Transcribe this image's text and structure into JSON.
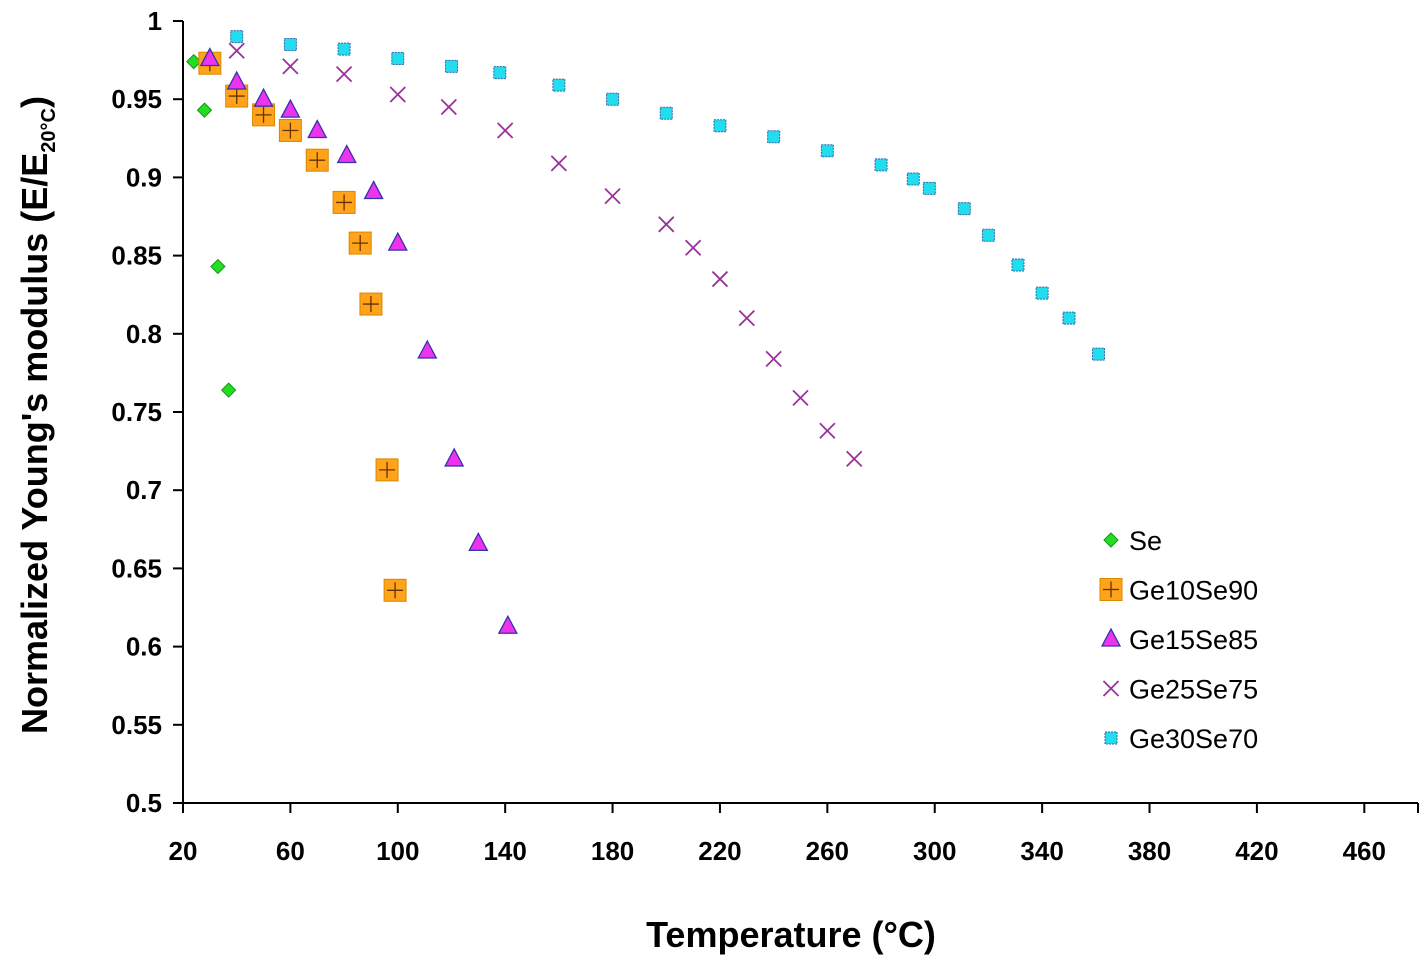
{
  "chart_data": {
    "type": "scatter",
    "xlabel": "Temperature (°C)",
    "ylabel": "Normalized Young's modulus (E/E",
    "ylabel_sub": "20°C",
    "ylabel_close": ")",
    "xlim": [
      20,
      480
    ],
    "ylim": [
      0.5,
      1.0
    ],
    "x_ticks": [
      20,
      60,
      100,
      140,
      180,
      220,
      260,
      300,
      340,
      380,
      420,
      460
    ],
    "y_ticks": [
      0.5,
      0.55,
      0.6,
      0.65,
      0.7,
      0.75,
      0.8,
      0.85,
      0.9,
      0.95,
      1
    ],
    "y_tick_labels": [
      "0.5",
      "0.55",
      "0.6",
      "0.65",
      "0.7",
      "0.75",
      "0.8",
      "0.85",
      "0.9",
      "0.95",
      "1"
    ],
    "grid": false,
    "legend_position": "bottom-right",
    "series": [
      {
        "name": "Se",
        "marker": "diamond",
        "color": "#22dd22",
        "points": [
          [
            24,
            0.974
          ],
          [
            28,
            0.943
          ],
          [
            33,
            0.843
          ],
          [
            37,
            0.764
          ]
        ]
      },
      {
        "name": "Ge10Se90",
        "marker": "square-plus",
        "color": "#ffa31a",
        "points": [
          [
            30,
            0.973
          ],
          [
            40,
            0.952
          ],
          [
            50,
            0.94
          ],
          [
            60,
            0.93
          ],
          [
            70,
            0.911
          ],
          [
            80,
            0.884
          ],
          [
            86,
            0.858
          ],
          [
            90,
            0.819
          ],
          [
            96,
            0.713
          ],
          [
            99,
            0.636
          ]
        ]
      },
      {
        "name": "Ge15Se85",
        "marker": "triangle",
        "color": "#ee33ee",
        "points": [
          [
            30,
            0.976
          ],
          [
            40,
            0.961
          ],
          [
            50,
            0.95
          ],
          [
            60,
            0.943
          ],
          [
            70,
            0.93
          ],
          [
            81,
            0.914
          ],
          [
            91,
            0.891
          ],
          [
            100,
            0.858
          ],
          [
            111,
            0.789
          ],
          [
            121,
            0.72
          ],
          [
            130,
            0.666
          ],
          [
            141,
            0.613
          ]
        ]
      },
      {
        "name": "Ge25Se75",
        "marker": "x",
        "color": "#993399",
        "points": [
          [
            40,
            0.981
          ],
          [
            60,
            0.971
          ],
          [
            80,
            0.966
          ],
          [
            100,
            0.953
          ],
          [
            119,
            0.945
          ],
          [
            140,
            0.93
          ],
          [
            160,
            0.909
          ],
          [
            180,
            0.888
          ],
          [
            200,
            0.87
          ],
          [
            210,
            0.855
          ],
          [
            220,
            0.835
          ],
          [
            230,
            0.81
          ],
          [
            240,
            0.784
          ],
          [
            250,
            0.759
          ],
          [
            260,
            0.738
          ],
          [
            270,
            0.72
          ]
        ]
      },
      {
        "name": "Ge30Se70",
        "marker": "square",
        "color": "#22ddee",
        "points": [
          [
            40,
            0.99
          ],
          [
            60,
            0.985
          ],
          [
            80,
            0.982
          ],
          [
            100,
            0.976
          ],
          [
            120,
            0.971
          ],
          [
            138,
            0.967
          ],
          [
            160,
            0.959
          ],
          [
            180,
            0.95
          ],
          [
            200,
            0.941
          ],
          [
            220,
            0.933
          ],
          [
            240,
            0.926
          ],
          [
            260,
            0.917
          ],
          [
            280,
            0.908
          ],
          [
            292,
            0.899
          ],
          [
            298,
            0.893
          ],
          [
            311,
            0.88
          ],
          [
            320,
            0.863
          ],
          [
            331,
            0.844
          ],
          [
            340,
            0.826
          ],
          [
            350,
            0.81
          ],
          [
            361,
            0.787
          ]
        ]
      }
    ]
  }
}
